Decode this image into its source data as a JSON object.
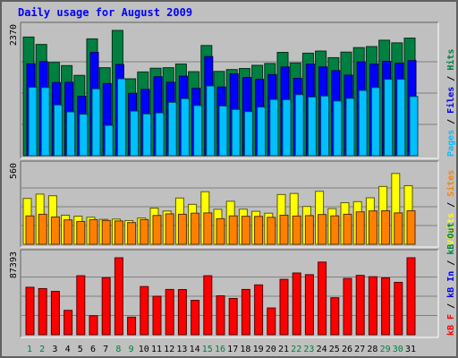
{
  "chart_data": {
    "type": "bar",
    "title": "Daily usage for August 2009",
    "days": [
      1,
      2,
      3,
      4,
      5,
      6,
      7,
      8,
      9,
      10,
      11,
      12,
      13,
      14,
      15,
      16,
      17,
      18,
      19,
      20,
      21,
      22,
      23,
      24,
      25,
      26,
      27,
      28,
      29,
      30,
      31
    ],
    "weekend_days": [
      1,
      2,
      8,
      9,
      15,
      16,
      22,
      23,
      29,
      30
    ],
    "panels": [
      {
        "id": "top",
        "max_label": "2370",
        "ymax": 2370,
        "right_labels": [
          "Pages",
          "Files",
          "Hits"
        ],
        "right_label_colors": [
          "#00c0ff",
          "#0000ff",
          "#008040"
        ],
        "series": [
          {
            "name": "Hits",
            "color": "#008040",
            "values": [
              2245,
              2105,
              1765,
              1705,
              1520,
              2210,
              1665,
              2370,
              1455,
              1585,
              1655,
              1665,
              1735,
              1590,
              2085,
              1595,
              1630,
              1650,
              1710,
              1745,
              1955,
              1755,
              1940,
              1980,
              1855,
              1960,
              2045,
              2065,
              2185,
              2135,
              2225
            ]
          },
          {
            "name": "Files",
            "color": "#0000ff",
            "values": [
              1740,
              1780,
              1385,
              1390,
              1125,
              1955,
              1365,
              1725,
              1180,
              1255,
              1495,
              1390,
              1505,
              1275,
              1875,
              1300,
              1550,
              1480,
              1445,
              1535,
              1680,
              1465,
              1735,
              1680,
              1610,
              1525,
              1775,
              1735,
              1785,
              1750,
              1800
            ]
          },
          {
            "name": "Pages",
            "color": "#00c0ff",
            "values": [
              1295,
              1290,
              960,
              830,
              785,
              1265,
              575,
              1455,
              845,
              790,
              810,
              1010,
              1080,
              950,
              1320,
              940,
              875,
              835,
              920,
              1065,
              1060,
              1155,
              1110,
              1130,
              1035,
              1085,
              1235,
              1290,
              1445,
              1445,
              1120
            ]
          }
        ]
      },
      {
        "id": "middle",
        "max_label": "560",
        "ymax": 560,
        "right_labels": [
          "Visits",
          "Sites"
        ],
        "right_label_colors": [
          "#ffff00",
          "#ff8000"
        ],
        "series": [
          {
            "name": "Visits",
            "color": "#ffff00",
            "values": [
              342,
              374,
              362,
              217,
              210,
              202,
              186,
              188,
              177,
              196,
              270,
              248,
              345,
              298,
              392,
              261,
              321,
              262,
              246,
              232,
              371,
              379,
              282,
              395,
              266,
              310,
              318,
              347,
              431,
              528,
              437
            ]
          },
          {
            "name": "Sites",
            "color": "#ff8000",
            "values": [
              212,
              224,
              204,
              182,
              170,
              184,
              178,
              174,
              162,
              184,
              215,
              227,
              224,
              232,
              234,
              191,
              212,
              209,
              208,
              201,
              217,
              211,
              214,
              222,
              212,
              224,
              242,
              249,
              250,
              234,
              250
            ]
          }
        ]
      },
      {
        "id": "bottom",
        "max_label": "87393",
        "ymax": 87393,
        "right_labels": [
          "kB F",
          "kB In",
          "kB Out"
        ],
        "right_label_colors": [
          "#ff0000",
          "#0000ff",
          "#008040"
        ],
        "series": [
          {
            "name": "kB F",
            "color": "#ff0000",
            "values": [
              53900,
              52400,
              49250,
              27700,
              67000,
              21600,
              64700,
              87393,
              20000,
              54700,
              43700,
              51400,
              51300,
              39100,
              67000,
              44200,
              41200,
              51400,
              56600,
              30400,
              62900,
              70100,
              68200,
              82500,
              42000,
              63900,
              67400,
              65900,
              64500,
              59500,
              87393
            ]
          }
        ]
      }
    ]
  }
}
